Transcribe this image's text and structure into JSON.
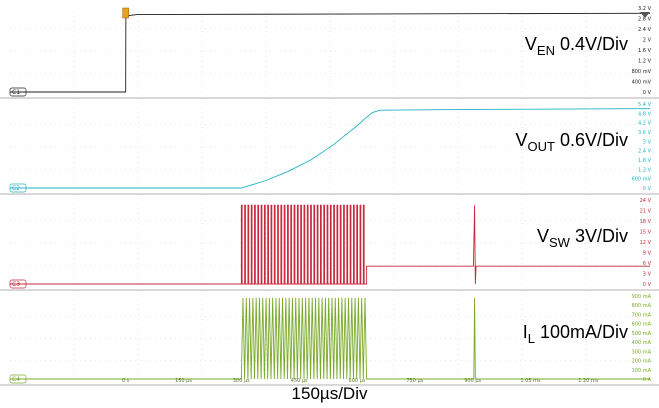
{
  "chart_data": {
    "type": "line",
    "x_unit": "µs",
    "x_scale_label": "150µs/Div",
    "x_ticks": [
      "0 s",
      "150 µs",
      "300 µs",
      "450 µs",
      "600 µs",
      "750 µs",
      "900 µs",
      "1.05 ms",
      "1.20 ms"
    ],
    "panels": [
      {
        "channel": "C1",
        "label_main": "V",
        "label_sub": "EN",
        "label_tail": " 0.4V/Div",
        "color": "#222222",
        "y_unit": "V",
        "y_ticks": [
          "3.2 V",
          "2.8 V",
          "2.4 V",
          "2 V",
          "1.6 V",
          "1.2 V",
          "800 mV",
          "400 mV",
          "0 V"
        ],
        "ylim": [
          0,
          3.2
        ],
        "series": {
          "x": [
            -300,
            0,
            0.5,
            30,
            1360
          ],
          "y": [
            0,
            0,
            2.9,
            2.95,
            3.0
          ]
        }
      },
      {
        "channel": "C2",
        "label_main": "V",
        "label_sub": "OUT",
        "label_tail": " 0.6V/Div",
        "color": "#22b2c4",
        "y_unit": "V",
        "y_ticks": [
          "5.4 V",
          "4.8 V",
          "4.2 V",
          "3.6 V",
          "3 V",
          "2.4 V",
          "1.8 V",
          "1.2 V",
          "600 mV",
          "0 V"
        ],
        "ylim": [
          0,
          5.4
        ],
        "series": {
          "x": [
            -300,
            300,
            360,
            420,
            480,
            540,
            600,
            620,
            640,
            660,
            900,
            1360
          ],
          "y": [
            0,
            0,
            0.45,
            1.05,
            1.8,
            2.8,
            4.0,
            4.45,
            4.85,
            5.0,
            5.05,
            5.1
          ]
        }
      },
      {
        "channel": "C3",
        "label_main": "V",
        "label_sub": "SW",
        "label_tail": " 3V/Div",
        "color": "#c8293e",
        "y_unit": "V",
        "y_ticks": [
          "24 V",
          "21 V",
          "18 V",
          "15 V",
          "12 V",
          "9 V",
          "6 V",
          "3 V",
          "0 V"
        ],
        "ylim": [
          0,
          24
        ],
        "baseline": 0,
        "pulse_level": 22.5,
        "post_level": 5.1,
        "switching": {
          "start": 300,
          "end": 625,
          "pulses": 38
        },
        "spike": {
          "x": 905,
          "peak": 22.5
        },
        "end_x": 1360
      },
      {
        "channel": "C4",
        "label_main": "I",
        "label_sub": "L",
        "label_tail": " 100mA/Div",
        "color": "#7aaa2a",
        "y_unit": "mA",
        "y_ticks": [
          "900 mA",
          "800 mA",
          "700 mA",
          "600 mA",
          "500 mA",
          "400 mA",
          "300 mA",
          "200 mA",
          "100 mA",
          "0 A"
        ],
        "ylim": [
          0,
          900
        ],
        "peak": 880,
        "switching": {
          "start": 300,
          "end": 625,
          "pulses": 38
        },
        "spike": {
          "x": 905,
          "peak": 880
        },
        "end_x": 1360
      }
    ]
  }
}
